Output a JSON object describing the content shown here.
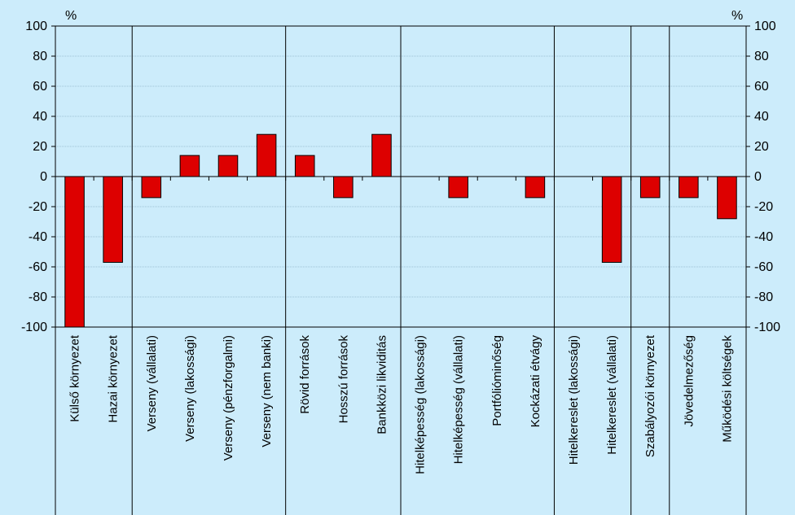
{
  "chart_data": {
    "type": "bar",
    "unit_left": "%",
    "unit_right": "%",
    "ylim": [
      -100,
      100
    ],
    "y_ticks": [
      "100",
      "80",
      "60",
      "40",
      "20",
      "0",
      "-20",
      "-40",
      "-60",
      "-80",
      "-100"
    ],
    "y_tick_values": [
      100,
      80,
      60,
      40,
      20,
      0,
      -20,
      -40,
      -60,
      -80,
      -100
    ],
    "grid": true,
    "bar_color": "#dd0000",
    "bar_stroke": "#000000",
    "categories": [
      "Külső környezet",
      "Hazai környezet",
      "Verseny (vállalati)",
      "Verseny (lakossági)",
      "Verseny (pénzforgalmi)",
      "Verseny (nem banki)",
      "Rövid források",
      "Hosszú források",
      "Bankközi likviditás",
      "Hitelképesség (lakossági)",
      "Hitelképesség (vállalati)",
      "Portfólióminőség",
      "Kockázati étvágy",
      "Hitelkereslet (lakossági)",
      "Hitelkereslet (vállalati)",
      "Szabályozói környezet",
      "Jövedelmezőség",
      "Működési költségek"
    ],
    "values": [
      -100,
      -57,
      -14,
      14,
      14,
      28,
      14,
      -14,
      28,
      0,
      -14,
      0,
      -14,
      0,
      -57,
      -14,
      -14,
      -28
    ],
    "group_separators_after": [
      1,
      5,
      8,
      12,
      14,
      15
    ]
  }
}
